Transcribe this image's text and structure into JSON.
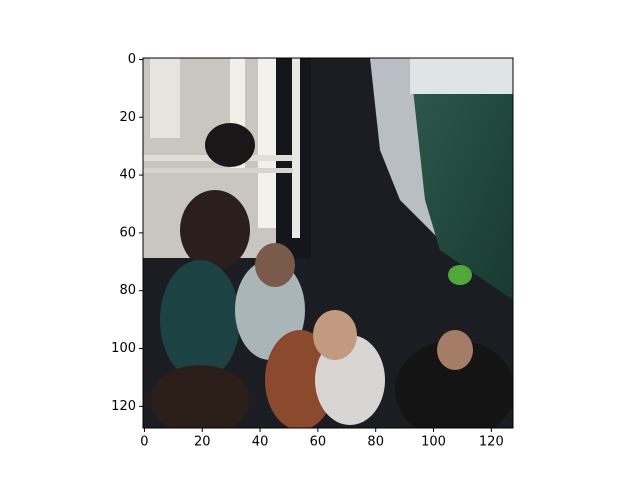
{
  "chart_data": {
    "type": "image",
    "xlim": [
      -0.5,
      127.5
    ],
    "ylim": [
      127.5,
      -0.5
    ],
    "xticks": [
      0,
      20,
      40,
      60,
      80,
      100,
      120
    ],
    "yticks": [
      0,
      20,
      40,
      60,
      80,
      100,
      120
    ]
  }
}
